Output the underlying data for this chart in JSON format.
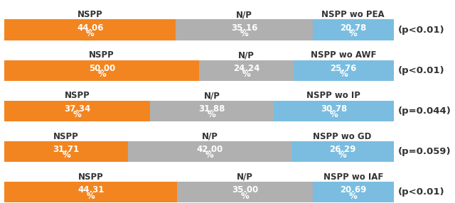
{
  "rows": [
    {
      "label1": "NSPP",
      "label2": "N/P",
      "label3": "NSPP wo PEA",
      "v1": 44.06,
      "v2": 35.16,
      "v3": 20.78,
      "pval": "(p<0.01)"
    },
    {
      "label1": "NSPP",
      "label2": "N/P",
      "label3": "NSPP wo AWF",
      "v1": 50.0,
      "v2": 24.24,
      "v3": 25.76,
      "pval": "(p<0.01)"
    },
    {
      "label1": "NSPP",
      "label2": "N/P",
      "label3": "NSPP wo IP",
      "v1": 37.34,
      "v2": 31.88,
      "v3": 30.78,
      "pval": "(p=0.044)"
    },
    {
      "label1": "NSPP",
      "label2": "N/P",
      "label3": "NSPP wo GD",
      "v1": 31.71,
      "v2": 42.0,
      "v3": 26.29,
      "pval": "(p=0.059)"
    },
    {
      "label1": "NSPP",
      "label2": "N/P",
      "label3": "NSPP wo IAF",
      "v1": 44.31,
      "v2": 35.0,
      "v3": 20.69,
      "pval": "(p<0.01)"
    }
  ],
  "color_orange": "#F28520",
  "color_gray": "#B0B0B0",
  "color_blue": "#7ABDE0",
  "bg_color": "#FFFFFF",
  "bar_text_color": "#FFFFFF",
  "label_text_color": "#333333",
  "pval_text_color": "#333333",
  "bar_value_fontsize": 8.5,
  "bar_percent_fontsize": 8.5,
  "label_fontsize": 8.5,
  "pval_fontsize": 9.5
}
